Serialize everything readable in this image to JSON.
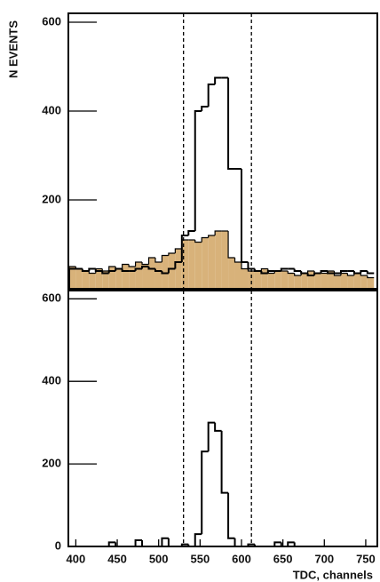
{
  "chart_data": [
    {
      "type": "histogram",
      "ylabel": "N EVENTS",
      "bins": [
        392,
        400,
        408,
        416,
        424,
        432,
        440,
        448,
        456,
        464,
        472,
        480,
        488,
        496,
        504,
        512,
        520,
        528,
        536,
        544,
        552,
        560,
        568,
        576,
        584,
        592,
        600,
        608,
        616,
        624,
        632,
        640,
        648,
        656,
        664,
        672,
        680,
        688,
        696,
        704,
        712,
        720,
        728,
        736,
        744,
        752,
        760
      ],
      "series": [
        {
          "color": "#000000",
          "fill": "#d8b27a",
          "values": [
            50,
            45,
            40,
            35,
            45,
            40,
            50,
            45,
            55,
            50,
            60,
            55,
            70,
            60,
            75,
            80,
            90,
            110,
            110,
            105,
            115,
            120,
            130,
            130,
            70,
            60,
            45,
            40,
            40,
            45,
            35,
            40,
            40,
            35,
            30,
            35,
            40,
            35,
            35,
            40,
            30,
            35,
            30,
            35,
            30,
            25
          ]
        },
        {
          "color": "#000000",
          "fill": "none",
          "values": [
            45,
            45,
            40,
            45,
            40,
            35,
            40,
            45,
            40,
            40,
            45,
            50,
            45,
            40,
            35,
            45,
            60,
            120,
            130,
            400,
            410,
            460,
            475,
            475,
            270,
            270,
            60,
            45,
            40,
            35,
            40,
            40,
            45,
            45,
            40,
            35,
            30,
            35,
            40,
            35,
            35,
            40,
            40,
            35,
            40,
            35
          ]
        }
      ],
      "xlim": [
        391,
        764
      ],
      "ylim": [
        0,
        620
      ],
      "yticks": [
        200,
        400,
        600
      ],
      "vlines": [
        530,
        612
      ]
    },
    {
      "type": "histogram",
      "xlabel": "TDC, channels",
      "bins": [
        392,
        400,
        408,
        416,
        424,
        432,
        440,
        448,
        456,
        464,
        472,
        480,
        488,
        496,
        504,
        512,
        520,
        528,
        536,
        544,
        552,
        560,
        568,
        576,
        584,
        592,
        600,
        608,
        616,
        624,
        632,
        640,
        648,
        656,
        664,
        672,
        680,
        688,
        696,
        704,
        712,
        720,
        728,
        736,
        744,
        752,
        760
      ],
      "series": [
        {
          "color": "#000000",
          "fill": "none",
          "values": [
            0,
            0,
            0,
            0,
            0,
            0,
            10,
            0,
            0,
            0,
            15,
            0,
            0,
            0,
            20,
            0,
            0,
            5,
            0,
            30,
            230,
            300,
            280,
            130,
            20,
            0,
            0,
            5,
            0,
            0,
            0,
            10,
            0,
            10,
            0,
            0,
            0,
            0,
            0,
            0,
            0,
            0,
            0,
            0,
            0,
            0
          ]
        }
      ],
      "xlim": [
        391,
        764
      ],
      "ylim": [
        0,
        620
      ],
      "xticks": [
        400,
        450,
        500,
        550,
        600,
        650,
        700,
        750
      ],
      "yticks": [
        0,
        200,
        400,
        600
      ],
      "vlines": [
        530,
        612
      ]
    }
  ]
}
